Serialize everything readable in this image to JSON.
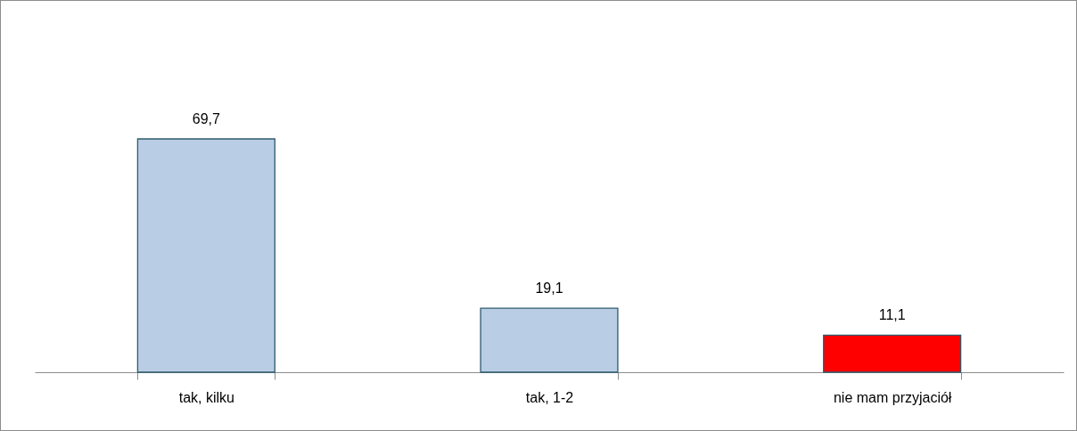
{
  "chart_data": {
    "type": "bar",
    "categories": [
      "tak, kilku",
      "tak, 1-2",
      "nie mam przyjaciół"
    ],
    "values": [
      69.7,
      19.1,
      11.1
    ],
    "colors": [
      "#b9cde5",
      "#b9cde5",
      "#ff0000"
    ],
    "value_labels": [
      "69,7",
      "19,1",
      "11,1"
    ],
    "grid": false
  }
}
